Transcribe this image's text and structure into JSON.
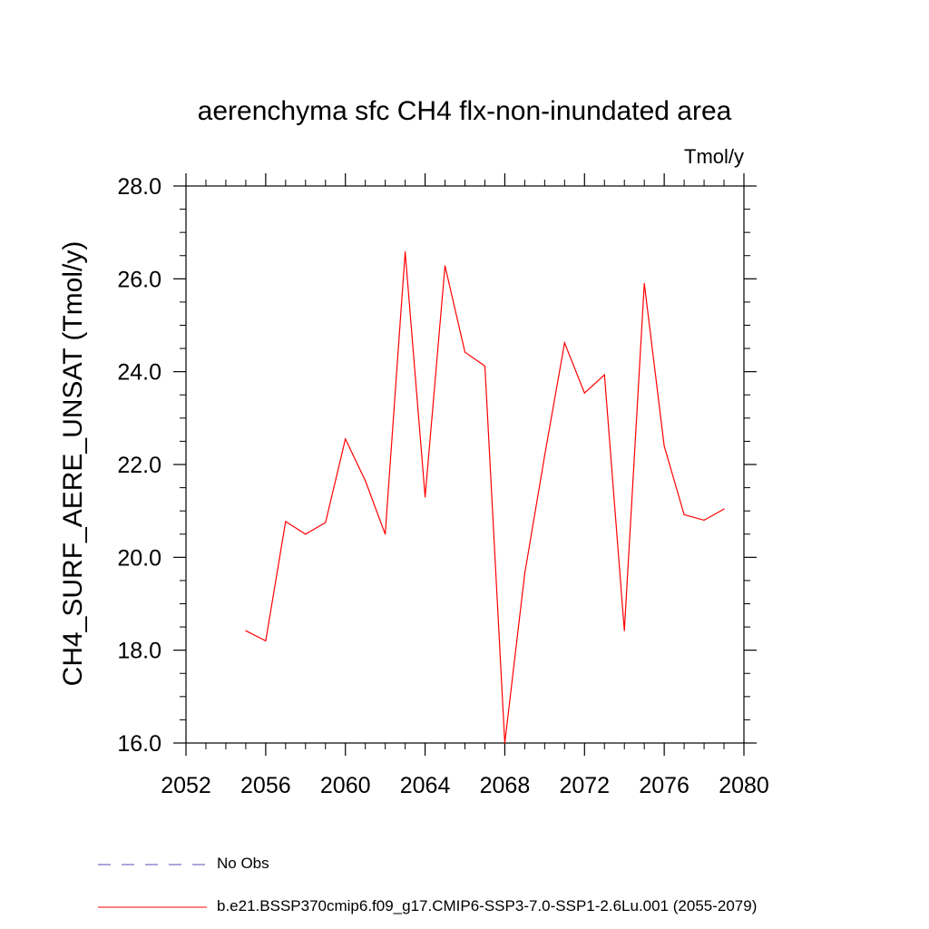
{
  "chart_data": {
    "type": "line",
    "title": "aerenchyma sfc CH4 flx-non-inundated area",
    "units": "Tmol/y",
    "ylabel": "CH4_SURF_AERE_UNSAT  (Tmol/y)",
    "xlabel": "",
    "xlim": [
      2052,
      2080
    ],
    "ylim": [
      16.0,
      28.0
    ],
    "x_ticks": [
      2052,
      2056,
      2060,
      2064,
      2068,
      2072,
      2076,
      2080
    ],
    "x_tick_labels": [
      "2052",
      "2056",
      "2060",
      "2064",
      "2068",
      "2072",
      "2076",
      "2080"
    ],
    "y_ticks": [
      16,
      18,
      20,
      22,
      24,
      26,
      28
    ],
    "y_tick_labels": [
      "16.0",
      "18.0",
      "20.0",
      "22.0",
      "24.0",
      "26.0",
      "28.0"
    ],
    "grid": false,
    "legend_position": "bottom",
    "series": [
      {
        "name": "b.e21.BSSP370cmip6.f09_g17.CMIP6-SSP3-7.0-SSP1-2.6Lu.001 (2055-2079)",
        "color": "#ff0000",
        "x": [
          2055,
          2056,
          2057,
          2058,
          2059,
          2060,
          2061,
          2062,
          2063,
          2064,
          2065,
          2066,
          2067,
          2068,
          2069,
          2070,
          2071,
          2072,
          2073,
          2074,
          2075,
          2076,
          2077,
          2078,
          2079
        ],
        "values": [
          18.42,
          18.2,
          20.77,
          20.5,
          20.75,
          22.55,
          21.65,
          20.5,
          26.58,
          21.3,
          26.28,
          24.42,
          24.12,
          16.0,
          19.65,
          22.2,
          24.62,
          23.54,
          23.93,
          18.42,
          25.9,
          22.4,
          20.92,
          20.8,
          21.04
        ]
      }
    ],
    "legend": [
      {
        "label": "No Obs",
        "color": "#5a4fb4",
        "dashed": true
      },
      {
        "label": "b.e21.BSSP370cmip6.f09_g17.CMIP6-SSP3-7.0-SSP1-2.6Lu.001 (2055-2079)",
        "color": "#ff0000",
        "dashed": false
      }
    ]
  }
}
